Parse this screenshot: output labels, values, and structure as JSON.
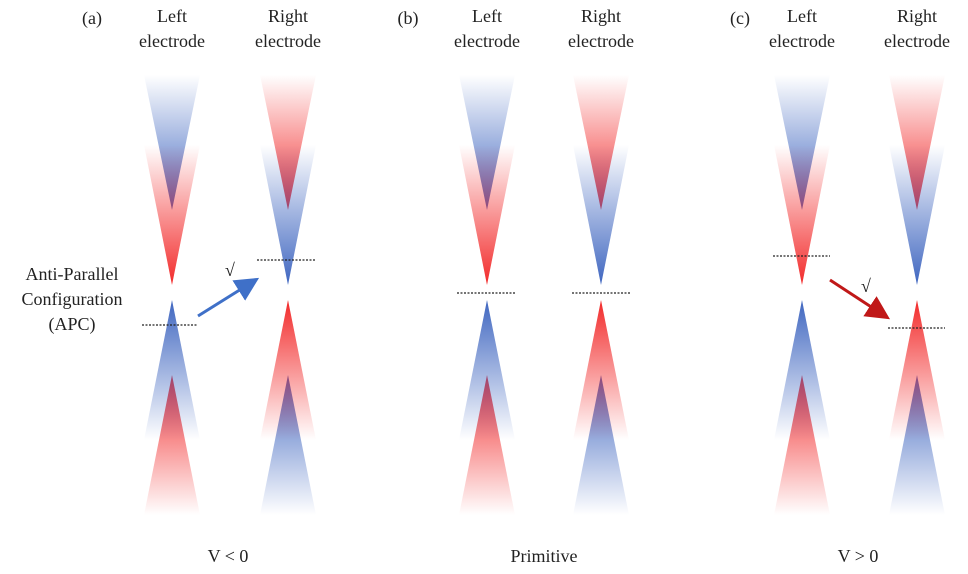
{
  "panels": [
    {
      "label": "(a)",
      "left_title": [
        "Left",
        "electrode"
      ],
      "right_title": [
        "Right",
        "electrode"
      ],
      "caption": "V < 0",
      "mark": "√"
    },
    {
      "label": "(b)",
      "left_title": [
        "Left",
        "electrode"
      ],
      "right_title": [
        "Right",
        "electrode"
      ],
      "caption": "Primitive"
    },
    {
      "label": "(c)",
      "left_title": [
        "Left",
        "electrode"
      ],
      "right_title": [
        "Right",
        "electrode"
      ],
      "caption": "V > 0",
      "mark": "√"
    }
  ],
  "side_label": [
    "Anti-Parallel",
    "Configuration",
    "(APC)"
  ]
}
